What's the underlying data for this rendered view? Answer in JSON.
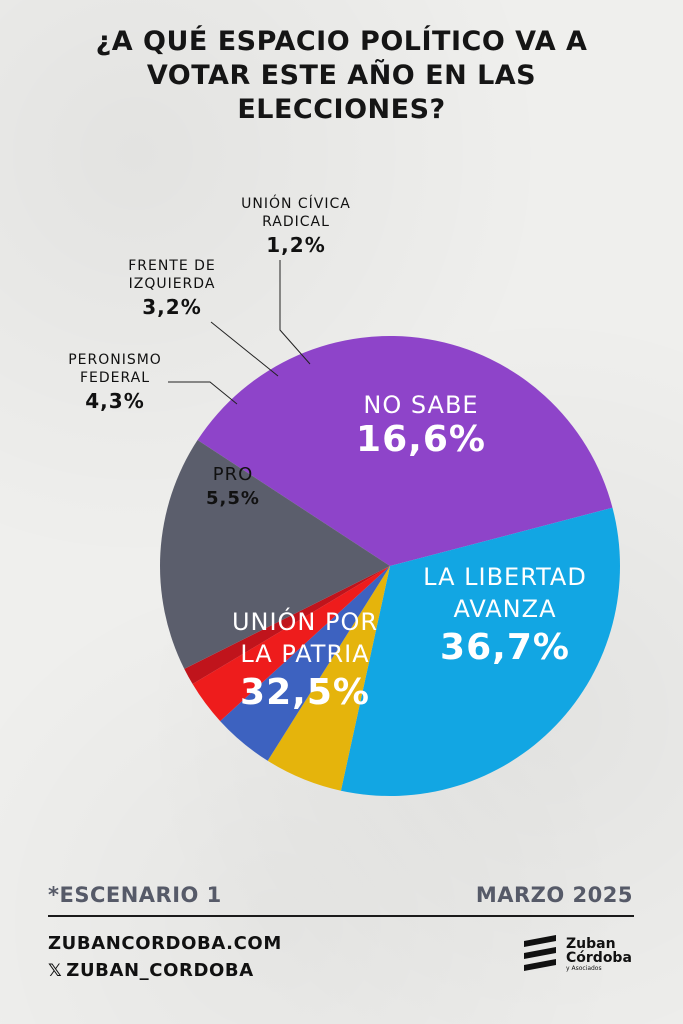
{
  "title": "¿A QUÉ ESPACIO POLÍTICO VA A VOTAR ESTE AÑO EN LAS ELECCIONES?",
  "footer": {
    "scenario": "*ESCENARIO 1",
    "date": "MARZO 2025",
    "website": "ZUBANCORDOBA.COM",
    "social": "ZUBAN_CORDOBA",
    "social_icon": "x-icon",
    "logo_line1": "Zuban",
    "logo_line2": "Córdoba",
    "logo_line3": "y Asociados"
  },
  "chart_data": {
    "type": "pie",
    "title": "¿A QUÉ ESPACIO POLÍTICO VA A VOTAR ESTE AÑO EN LAS ELECCIONES?",
    "slices": [
      {
        "label": "LA LIBERTAD AVANZA",
        "value": 36.7,
        "display": "36,7%",
        "color": "#8e44c9"
      },
      {
        "label": "UNIÓN POR LA PATRIA",
        "value": 32.5,
        "display": "32,5%",
        "color": "#12a6e3"
      },
      {
        "label": "PRO",
        "value": 5.5,
        "display": "5,5%",
        "color": "#e5b40c"
      },
      {
        "label": "PERONISMO FEDERAL",
        "value": 4.3,
        "display": "4,3%",
        "color": "#3d62c0"
      },
      {
        "label": "FRENTE DE IZQUIERDA",
        "value": 3.2,
        "display": "3,2%",
        "color": "#ee1c1c"
      },
      {
        "label": "UNIÓN CÍVICA RADICAL",
        "value": 1.2,
        "display": "1,2%",
        "color": "#c0141c"
      },
      {
        "label": "NO SABE",
        "value": 16.6,
        "display": "16,6%",
        "color": "#5b5e6c"
      }
    ]
  }
}
